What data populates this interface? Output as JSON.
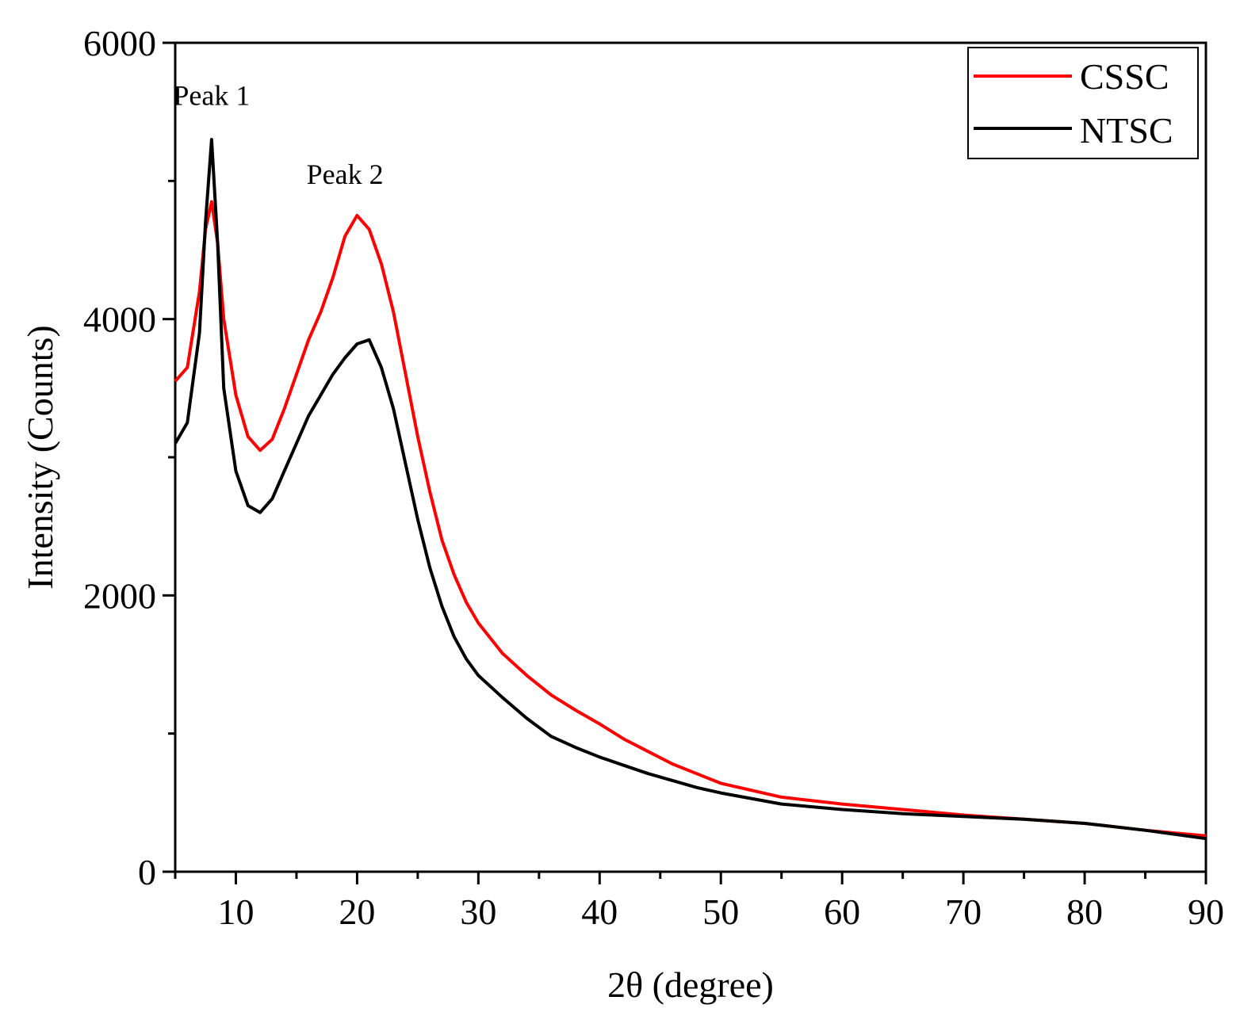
{
  "chart_data": {
    "type": "line",
    "title": "",
    "xlabel": "2θ (degree)",
    "ylabel": "Intensity (Counts)",
    "xlim": [
      5,
      90
    ],
    "ylim": [
      0,
      6000
    ],
    "x_ticks": [
      10,
      20,
      30,
      40,
      50,
      60,
      70,
      80,
      90
    ],
    "y_ticks": [
      0,
      2000,
      4000,
      6000
    ],
    "x_minor_step": 5,
    "y_minor_step": 1000,
    "grid": false,
    "legend_position": "top-right",
    "annotations": [
      {
        "text": "Peak 1",
        "x": 8,
        "y": 5550
      },
      {
        "text": "Peak 2",
        "x": 19,
        "y": 4980
      }
    ],
    "series": [
      {
        "name": "CSSC",
        "color": "#ff0000",
        "x": [
          5,
          6,
          7,
          7.5,
          8,
          8.5,
          9,
          10,
          11,
          12,
          13,
          14,
          15,
          16,
          17,
          18,
          19,
          20,
          21,
          22,
          23,
          24,
          25,
          26,
          27,
          28,
          29,
          30,
          32,
          34,
          36,
          38,
          40,
          42,
          44,
          46,
          48,
          50,
          55,
          60,
          65,
          70,
          75,
          80,
          85,
          90
        ],
        "y": [
          3550,
          3650,
          4200,
          4650,
          4850,
          4550,
          4000,
          3450,
          3150,
          3050,
          3130,
          3350,
          3600,
          3850,
          4050,
          4300,
          4600,
          4750,
          4650,
          4400,
          4050,
          3600,
          3150,
          2750,
          2400,
          2150,
          1950,
          1800,
          1580,
          1420,
          1280,
          1170,
          1070,
          960,
          870,
          780,
          710,
          640,
          540,
          490,
          450,
          410,
          380,
          350,
          300,
          260
        ]
      },
      {
        "name": "NTSC",
        "color": "#000000",
        "x": [
          5,
          6,
          7,
          7.5,
          8,
          8.5,
          9,
          10,
          11,
          12,
          13,
          14,
          15,
          16,
          17,
          18,
          19,
          20,
          21,
          22,
          23,
          24,
          25,
          26,
          27,
          28,
          29,
          30,
          32,
          34,
          36,
          38,
          40,
          42,
          44,
          46,
          48,
          50,
          55,
          60,
          65,
          70,
          75,
          80,
          85,
          90
        ],
        "y": [
          3100,
          3250,
          3900,
          4700,
          5300,
          4550,
          3500,
          2900,
          2650,
          2600,
          2700,
          2900,
          3100,
          3300,
          3450,
          3600,
          3720,
          3820,
          3850,
          3650,
          3350,
          2950,
          2550,
          2200,
          1920,
          1700,
          1540,
          1420,
          1260,
          1110,
          980,
          900,
          830,
          770,
          710,
          660,
          610,
          570,
          490,
          450,
          420,
          400,
          380,
          350,
          300,
          240
        ]
      }
    ]
  }
}
